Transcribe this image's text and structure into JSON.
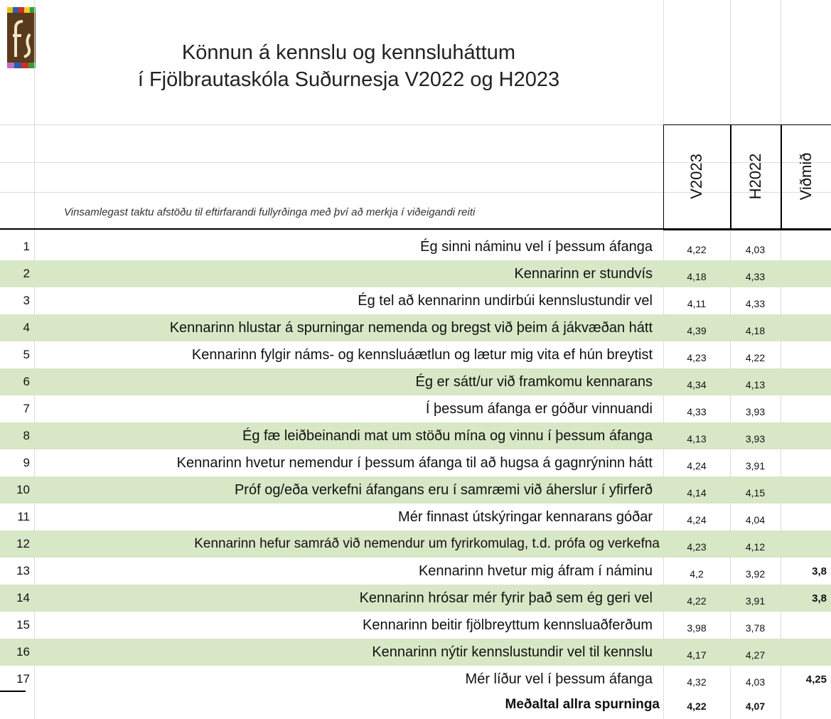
{
  "header": {
    "title_lines": [
      "Könnun á kennslu og kennsluháttum",
      "í Fjölbrautaskóla Suðurnesja V2022 og H2023"
    ],
    "instruction": "Vinsamlegast taktu afstöðu til eftirfarandi fullyrðinga með því að merkja í viðeigandi reiti",
    "columns": [
      "V2023",
      "H2022",
      "Viðmið"
    ]
  },
  "table": {
    "rows": [
      [
        "1",
        "Ég sinni náminu vel í þessum áfanga",
        "4,22",
        "4,03",
        null
      ],
      [
        "2",
        "Kennarinn er stundvís",
        "4,18",
        "4,33",
        null
      ],
      [
        "3",
        "Ég tel að kennarinn undirbúi kennslustundir vel",
        "4,11",
        "4,33",
        null
      ],
      [
        "4",
        "Kennarinn hlustar á spurningar nemenda og bregst við þeim á jákvæðan hátt",
        "4,39",
        "4,18",
        null
      ],
      [
        "5",
        "Kennarinn fylgir náms- og kennsluáætlun og lætur mig vita ef hún breytist",
        "4,23",
        "4,22",
        null
      ],
      [
        "6",
        "Ég er sátt/ur við framkomu kennarans",
        "4,34",
        "4,13",
        null
      ],
      [
        "7",
        "Í þessum áfanga er góður vinnuandi",
        "4,33",
        "3,93",
        null
      ],
      [
        "8",
        "Ég fæ leiðbeinandi mat um stöðu mína og vinnu í þessum áfanga",
        "4,13",
        "3,93",
        null
      ],
      [
        "9",
        "Kennarinn hvetur nemendur í þessum áfanga til að hugsa á gagnrýninn hátt",
        "4,24",
        "3,91",
        null
      ],
      [
        "10",
        "Próf og/eða verkefni áfangans eru í samræmi við áherslur í yfirferð",
        "4,14",
        "4,15",
        null
      ],
      [
        "11",
        "Mér finnast útskýringar kennarans góðar",
        "4,24",
        "4,04",
        null
      ],
      [
        "12",
        "Kennarinn hefur samráð við nemendur um fyrirkomulag, t.d. prófa og verkefna",
        "4,23",
        "4,12",
        null
      ],
      [
        "13",
        "Kennarinn hvetur mig áfram í náminu",
        "4,2",
        "3,92",
        "3,8"
      ],
      [
        "14",
        "Kennarinn hrósar mér fyrir það sem ég geri vel",
        "4,22",
        "3,91",
        "3,8"
      ],
      [
        "15",
        "Kennarinn beitir fjölbreyttum kennsluaðferðum",
        "3,98",
        "3,78",
        null
      ],
      [
        "16",
        "Kennarinn nýtir kennslustundir vel til kennslu",
        "4,17",
        "4,27",
        null
      ],
      [
        "17",
        "Mér líður vel í þessum áfanga",
        "4,32",
        "4,03",
        "4,25"
      ]
    ],
    "footer": [
      "Meðaltal allra spurninga",
      "4,22",
      "4,07"
    ]
  }
}
